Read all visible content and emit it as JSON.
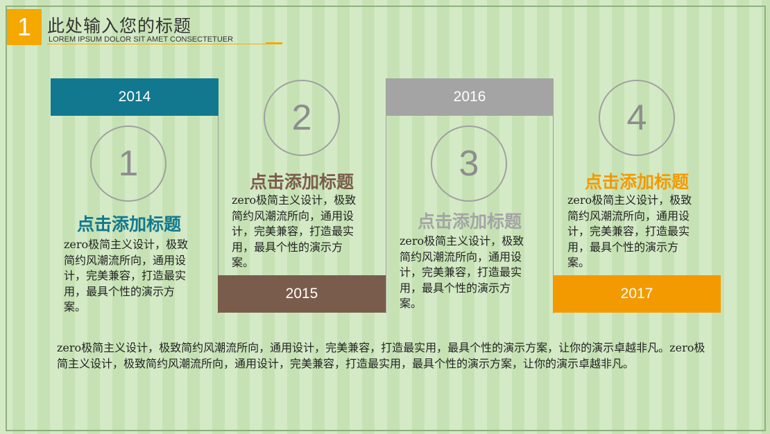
{
  "header": {
    "number": "1",
    "title": "此处输入您的标题",
    "subtitle": "LOREM IPSUM DOLOR SIT AMET CONSECTETUER"
  },
  "colors": {
    "accent": "#f5a800",
    "teal": "#12788f",
    "brown": "#7a5c4c",
    "gray": "#a4a4a4",
    "orange": "#f39a00"
  },
  "cards": [
    {
      "year": "2014",
      "number": "1",
      "title": "点击添加标题",
      "body": "zero极简主义设计，极致简约风潮流所向，通用设计，完美兼容，打造最实用，最具个性的演示方案。"
    },
    {
      "year": "2015",
      "number": "2",
      "title": "点击添加标题",
      "body": "zero极简主义设计，极致简约风潮流所向，通用设计，完美兼容，打造最实用，最具个性的演示方案。"
    },
    {
      "year": "2016",
      "number": "3",
      "title": "点击添加标题",
      "body": "zero极简主义设计，极致简约风潮流所向，通用设计，完美兼容，打造最实用，最具个性的演示方案。"
    },
    {
      "year": "2017",
      "number": "4",
      "title": "点击添加标题",
      "body": "zero极简主义设计，极致简约风潮流所向，通用设计，完美兼容，打造最实用，最具个性的演示方案。"
    }
  ],
  "footer": {
    "text": "zero极简主义设计，极致简约风潮流所向，通用设计，完美兼容，打造最实用，最具个性的演示方案，让你的演示卓越非凡。zero极简主义设计，极致简约风潮流所向，通用设计，完美兼容，打造最实用，最具个性的演示方案，让你的演示卓越非凡。"
  }
}
